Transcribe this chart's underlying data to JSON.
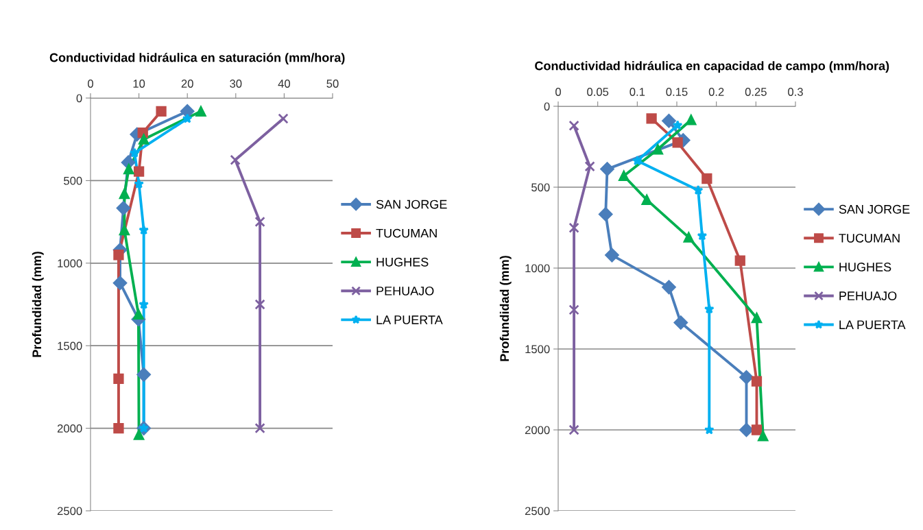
{
  "chart_data": [
    {
      "type": "line",
      "title": "Conductividad hidráulica en saturación (mm/hora)",
      "ylabel": "Profundidad (mm)",
      "xlim": [
        0,
        50
      ],
      "xticks": [
        0,
        10,
        20,
        30,
        40,
        50
      ],
      "ylim": [
        2500,
        0
      ],
      "yticks": [
        0,
        500,
        1000,
        1500,
        2000,
        2500
      ],
      "grid": "y",
      "legend": "right",
      "series": [
        {
          "name": "SAN JORGE",
          "color": "#4a7ebb",
          "marker": "diamond",
          "x": [
            20,
            9.6,
            7.8,
            6.8,
            6.1,
            6.1,
            9.9,
            11,
            11
          ],
          "values": [
            80,
            220,
            390,
            667,
            920,
            1120,
            1340,
            1675,
            2000
          ]
        },
        {
          "name": "TUCUMAN",
          "color": "#be4b48",
          "marker": "square",
          "x": [
            14.6,
            10.8,
            10,
            5.8,
            5.8,
            5.8
          ],
          "values": [
            80,
            210,
            445,
            950,
            1700,
            2000
          ]
        },
        {
          "name": "HUGHES",
          "color": "#00b050",
          "marker": "triangle",
          "x": [
            22.8,
            11,
            7.9,
            7,
            7,
            9.9,
            10
          ],
          "values": [
            80,
            250,
            430,
            580,
            800,
            1310,
            2040
          ]
        },
        {
          "name": "PEHUAJO",
          "color": "#7d60a0",
          "marker": "cross",
          "x": [
            39.8,
            29.9,
            35,
            35,
            35
          ],
          "values": [
            125,
            375,
            750,
            1250,
            2000
          ]
        },
        {
          "name": "LA PUERTA",
          "color": "#00b0f0",
          "marker": "star",
          "x": [
            20,
            9.1,
            10,
            11,
            11,
            11
          ],
          "values": [
            125,
            333,
            520,
            800,
            1250,
            2000
          ]
        }
      ]
    },
    {
      "type": "line",
      "title": "Conductividad hidráulica en capacidad de campo (mm/hora)",
      "ylabel": "Profundidad (mm)",
      "xlim": [
        0,
        0.3
      ],
      "xticks": [
        0,
        0.05,
        0.1,
        0.15,
        0.2,
        0.25,
        0.3
      ],
      "ylim": [
        2500,
        0
      ],
      "yticks": [
        0,
        500,
        1000,
        1500,
        2000,
        2500
      ],
      "grid": "y",
      "legend": "right",
      "series": [
        {
          "name": "SAN JORGE",
          "color": "#4a7ebb",
          "marker": "diamond",
          "x": [
            0.14,
            0.158,
            0.062,
            0.06,
            0.068,
            0.14,
            0.155,
            0.238,
            0.238
          ],
          "values": [
            90,
            210,
            388,
            667,
            920,
            1118,
            1337,
            1675,
            2000
          ]
        },
        {
          "name": "TUCUMAN",
          "color": "#be4b48",
          "marker": "square",
          "x": [
            0.118,
            0.151,
            0.188,
            0.23,
            0.251,
            0.251
          ],
          "values": [
            76,
            224,
            447,
            954,
            1700,
            2000
          ]
        },
        {
          "name": "HUGHES",
          "color": "#00b050",
          "marker": "triangle",
          "x": [
            0.168,
            0.126,
            0.083,
            0.112,
            0.165,
            0.251,
            0.259
          ],
          "values": [
            84,
            266,
            430,
            578,
            810,
            1308,
            2038
          ]
        },
        {
          "name": "PEHUAJO",
          "color": "#7d60a0",
          "marker": "cross",
          "x": [
            0.02,
            0.04,
            0.02,
            0.02,
            0.02
          ],
          "values": [
            120,
            372,
            751,
            1258,
            2000
          ]
        },
        {
          "name": "LA PUERTA",
          "color": "#00b0f0",
          "marker": "star",
          "x": [
            0.151,
            0.1,
            0.177,
            0.182,
            0.191,
            0.191
          ],
          "values": [
            118,
            337,
            519,
            800,
            1253,
            2000
          ]
        }
      ]
    }
  ]
}
